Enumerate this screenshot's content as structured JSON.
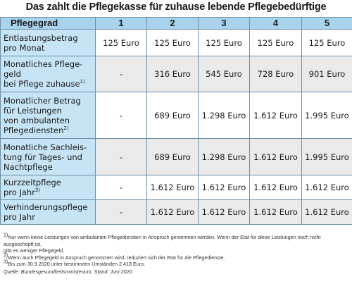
{
  "title": "Das zahlt die Pflegekasse für zuhause lebende Pflegebedürftige",
  "table": {
    "header": [
      "Pflegegrad",
      "1",
      "2",
      "3",
      "4",
      "5"
    ],
    "rows": [
      {
        "label_lines": [
          "Entlastungsbetrag",
          "pro Monat"
        ],
        "sup": "",
        "values": [
          "125 Euro",
          "125 Euro",
          "125 Euro",
          "125 Euro",
          "125 Euro"
        ]
      },
      {
        "label_lines": [
          "Monatliches Pflege-",
          "geld",
          "bei Pflege zuhause"
        ],
        "sup": "1)",
        "values": [
          "-",
          "316 Euro",
          "545 Euro",
          "728 Euro",
          "901 Euro"
        ]
      },
      {
        "label_lines": [
          "Monatlicher Betrag",
          "für Leistungen",
          "von ambulanten",
          "Pflegediensten"
        ],
        "sup": "2)",
        "values": [
          "-",
          "689 Euro",
          "1.298 Euro",
          "1.612 Euro",
          "1.995 Euro"
        ]
      },
      {
        "label_lines": [
          "Monatliche Sachleis-",
          "tung für Tages- und",
          "Nachtpflege"
        ],
        "sup": "",
        "values": [
          "-",
          "689 Euro",
          "1.298 Euro",
          "1.612 Euro",
          "1.995 Euro"
        ]
      },
      {
        "label_lines": [
          "Kurzzeitpflege",
          "pro Jahr"
        ],
        "sup": "3)",
        "values": [
          "-",
          "1.612 Euro",
          "1.612 Euro",
          "1.612 Euro",
          "1.612 Euro"
        ]
      },
      {
        "label_lines": [
          "Verhinderungspflege",
          "pro Jahr"
        ],
        "sup": "",
        "values": [
          "-",
          "1.612 Euro",
          "1.612 Euro",
          "1.612 Euro",
          "1.612 Euro"
        ]
      }
    ]
  },
  "footnotes": [
    {
      "mark": "1)",
      "lines": [
        "Nur wenn keine Leistungen von ambulanten Pflegediensten in Anspruch genommen werden. Wenn der Etat für diese Leistungen noch nicht ausgeschöpft ist,",
        "gibt es weniger Pflegegeld."
      ]
    },
    {
      "mark": "2)",
      "lines": [
        "Wenn auch Pflegegeld in Anspruch genommen wird, reduziert sich der Etat für die Pflegedienste."
      ]
    },
    {
      "mark": "3)",
      "lines": [
        "Bis zum 30.9.2020 unter bestimmten Umständen 2.418 Euro."
      ]
    }
  ],
  "source": "Quelle: Bundesgesundheitsministerium, Stand: Juni 2020",
  "colors": {
    "header_bg": "#a9d3ec",
    "label_bg": "#c6e4f5",
    "alt_row_bg": "#eaeaea",
    "border": "#6f8fa6"
  }
}
